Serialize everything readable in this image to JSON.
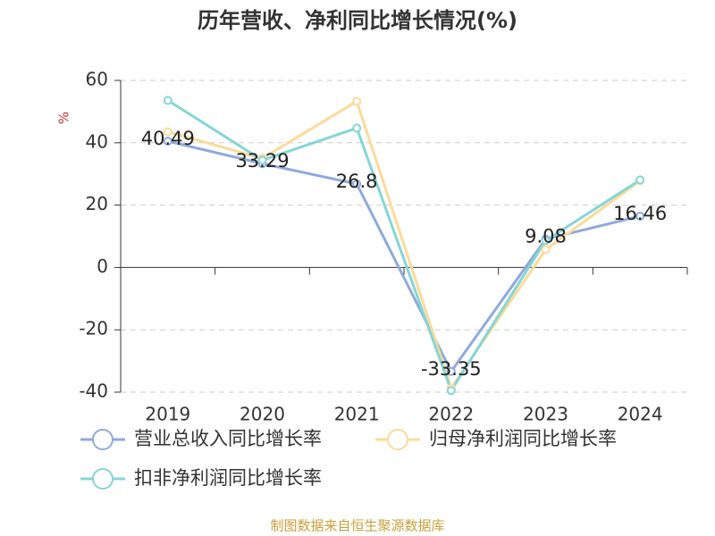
{
  "chart_data": {
    "type": "line",
    "title": "历年营收、净利同比增长情况(%)",
    "y_label": "%",
    "categories": [
      "2019",
      "2020",
      "2021",
      "2022",
      "2023",
      "2024"
    ],
    "series": [
      {
        "name": "营业总收入同比增长率",
        "color": "#8eaadb",
        "values": [
          40.49,
          33.29,
          26.8,
          -33.35,
          9.08,
          16.46
        ],
        "data_labels": true
      },
      {
        "name": "归母净利润同比增长率",
        "color": "#fadb9a",
        "values": [
          43.5,
          35,
          53.3,
          -38.7,
          5.7,
          27.8
        ],
        "data_labels": false
      },
      {
        "name": "扣非净利润同比增长率",
        "color": "#86d5d6",
        "values": [
          53.6,
          34.4,
          44.7,
          -39.5,
          8.6,
          28.1
        ],
        "data_labels": false
      }
    ],
    "ylim": [
      -40,
      60
    ],
    "yticks": [
      -40,
      -20,
      0,
      20,
      40,
      60
    ],
    "grid": true,
    "source": "制图数据来自恒生聚源数据库"
  }
}
